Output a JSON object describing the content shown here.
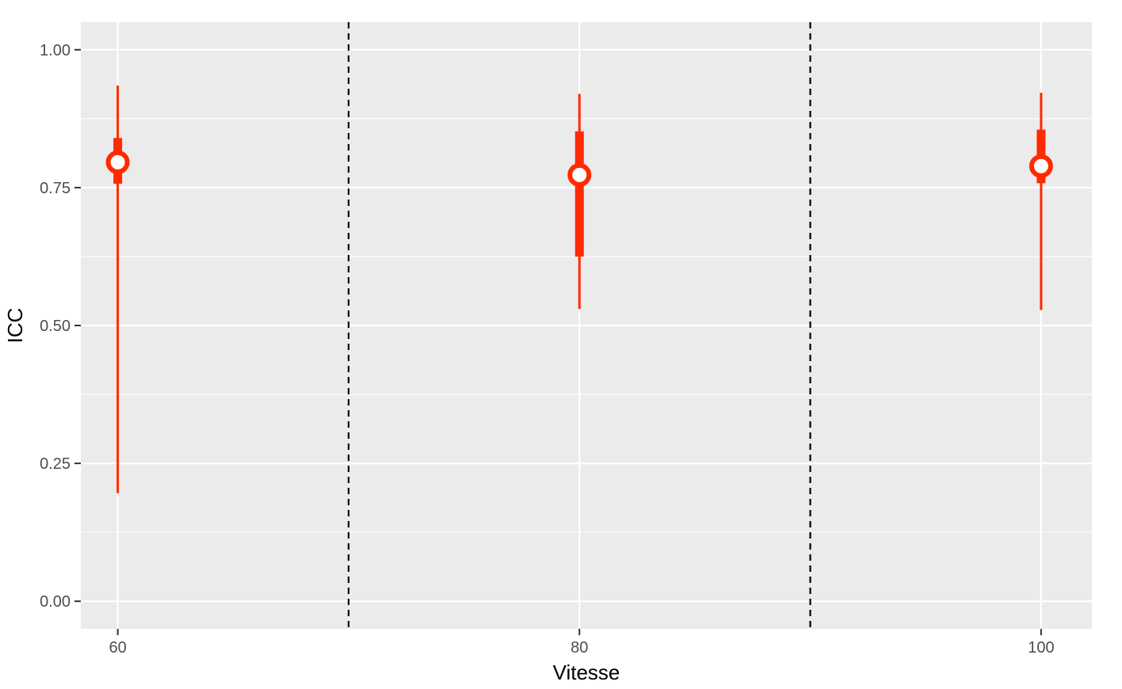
{
  "chart_data": {
    "type": "pointrange",
    "xlabel": "Vitesse",
    "ylabel": "ICC",
    "x_ticks": [
      60,
      80,
      100
    ],
    "y_ticks": [
      0.0,
      0.25,
      0.5,
      0.75,
      1.0
    ],
    "y_tick_labels": [
      "0.00",
      "0.25",
      "0.50",
      "0.75",
      "1.00"
    ],
    "xlim": [
      58.4,
      102.2
    ],
    "ylim": [
      -0.05,
      1.05
    ],
    "grid": true,
    "vlines": [
      70,
      90
    ],
    "points": [
      {
        "x": 60,
        "y": 0.796,
        "inner_low": 0.757,
        "inner_high": 0.84,
        "outer_low": 0.196,
        "outer_high": 0.935
      },
      {
        "x": 80,
        "y": 0.773,
        "inner_low": 0.625,
        "inner_high": 0.852,
        "outer_low": 0.53,
        "outer_high": 0.92
      },
      {
        "x": 100,
        "y": 0.789,
        "inner_low": 0.758,
        "inner_high": 0.855,
        "outer_low": 0.528,
        "outer_high": 0.922
      }
    ],
    "colors": {
      "panel": "#ebebeb",
      "grid": "#ffffff",
      "series": "#ff2a00",
      "vline": "#000000"
    }
  }
}
